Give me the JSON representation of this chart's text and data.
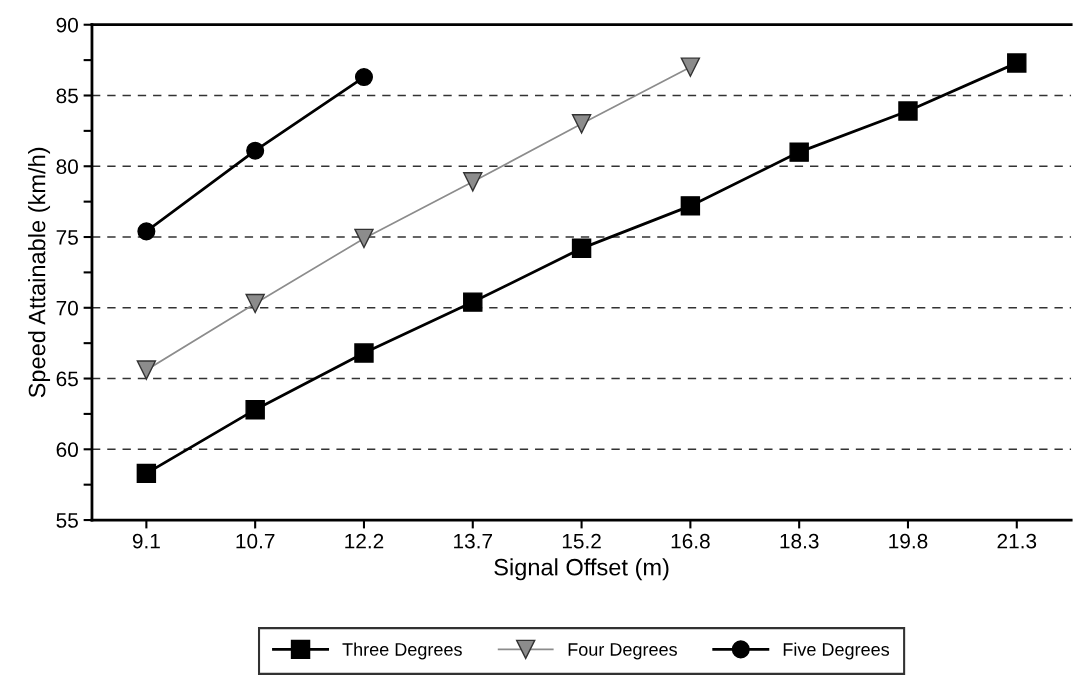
{
  "chart_data": {
    "type": "line",
    "xlabel": "Signal Offset (m)",
    "ylabel": "Speed Attainable (km/h)",
    "categories": [
      "9.1",
      "10.7",
      "12.2",
      "13.7",
      "15.2",
      "16.8",
      "18.3",
      "19.8",
      "21.3"
    ],
    "series": [
      {
        "name": "Three Degrees",
        "color": "#000000",
        "marker": "square",
        "values": [
          58.3,
          62.8,
          66.8,
          70.4,
          74.2,
          77.2,
          81.0,
          83.9,
          87.3
        ]
      },
      {
        "name": "Four Degrees",
        "color": "#8c8c8c",
        "marker": "triangle",
        "values": [
          65.6,
          70.3,
          74.9,
          78.9,
          83.0,
          87.0,
          null,
          null,
          null
        ]
      },
      {
        "name": "Five Degrees",
        "color": "#000000",
        "marker": "circle",
        "values": [
          75.4,
          81.1,
          86.3,
          null,
          null,
          null,
          null,
          null,
          null
        ]
      }
    ],
    "ylim": [
      55,
      90
    ],
    "yticks": [
      55,
      {
        "value": 57.5,
        "label": null
      },
      60,
      {
        "value": 62.5,
        "label": null
      },
      65,
      {
        "value": 67.5,
        "label": null
      },
      70,
      {
        "value": 72.5,
        "label": null
      },
      75,
      {
        "value": 77.5,
        "label": null
      },
      80,
      {
        "value": 82.5,
        "label": null
      },
      85,
      {
        "value": 87.5,
        "label": null
      },
      90
    ],
    "grid": "y",
    "legend": "bottom",
    "line_style": "solid"
  }
}
